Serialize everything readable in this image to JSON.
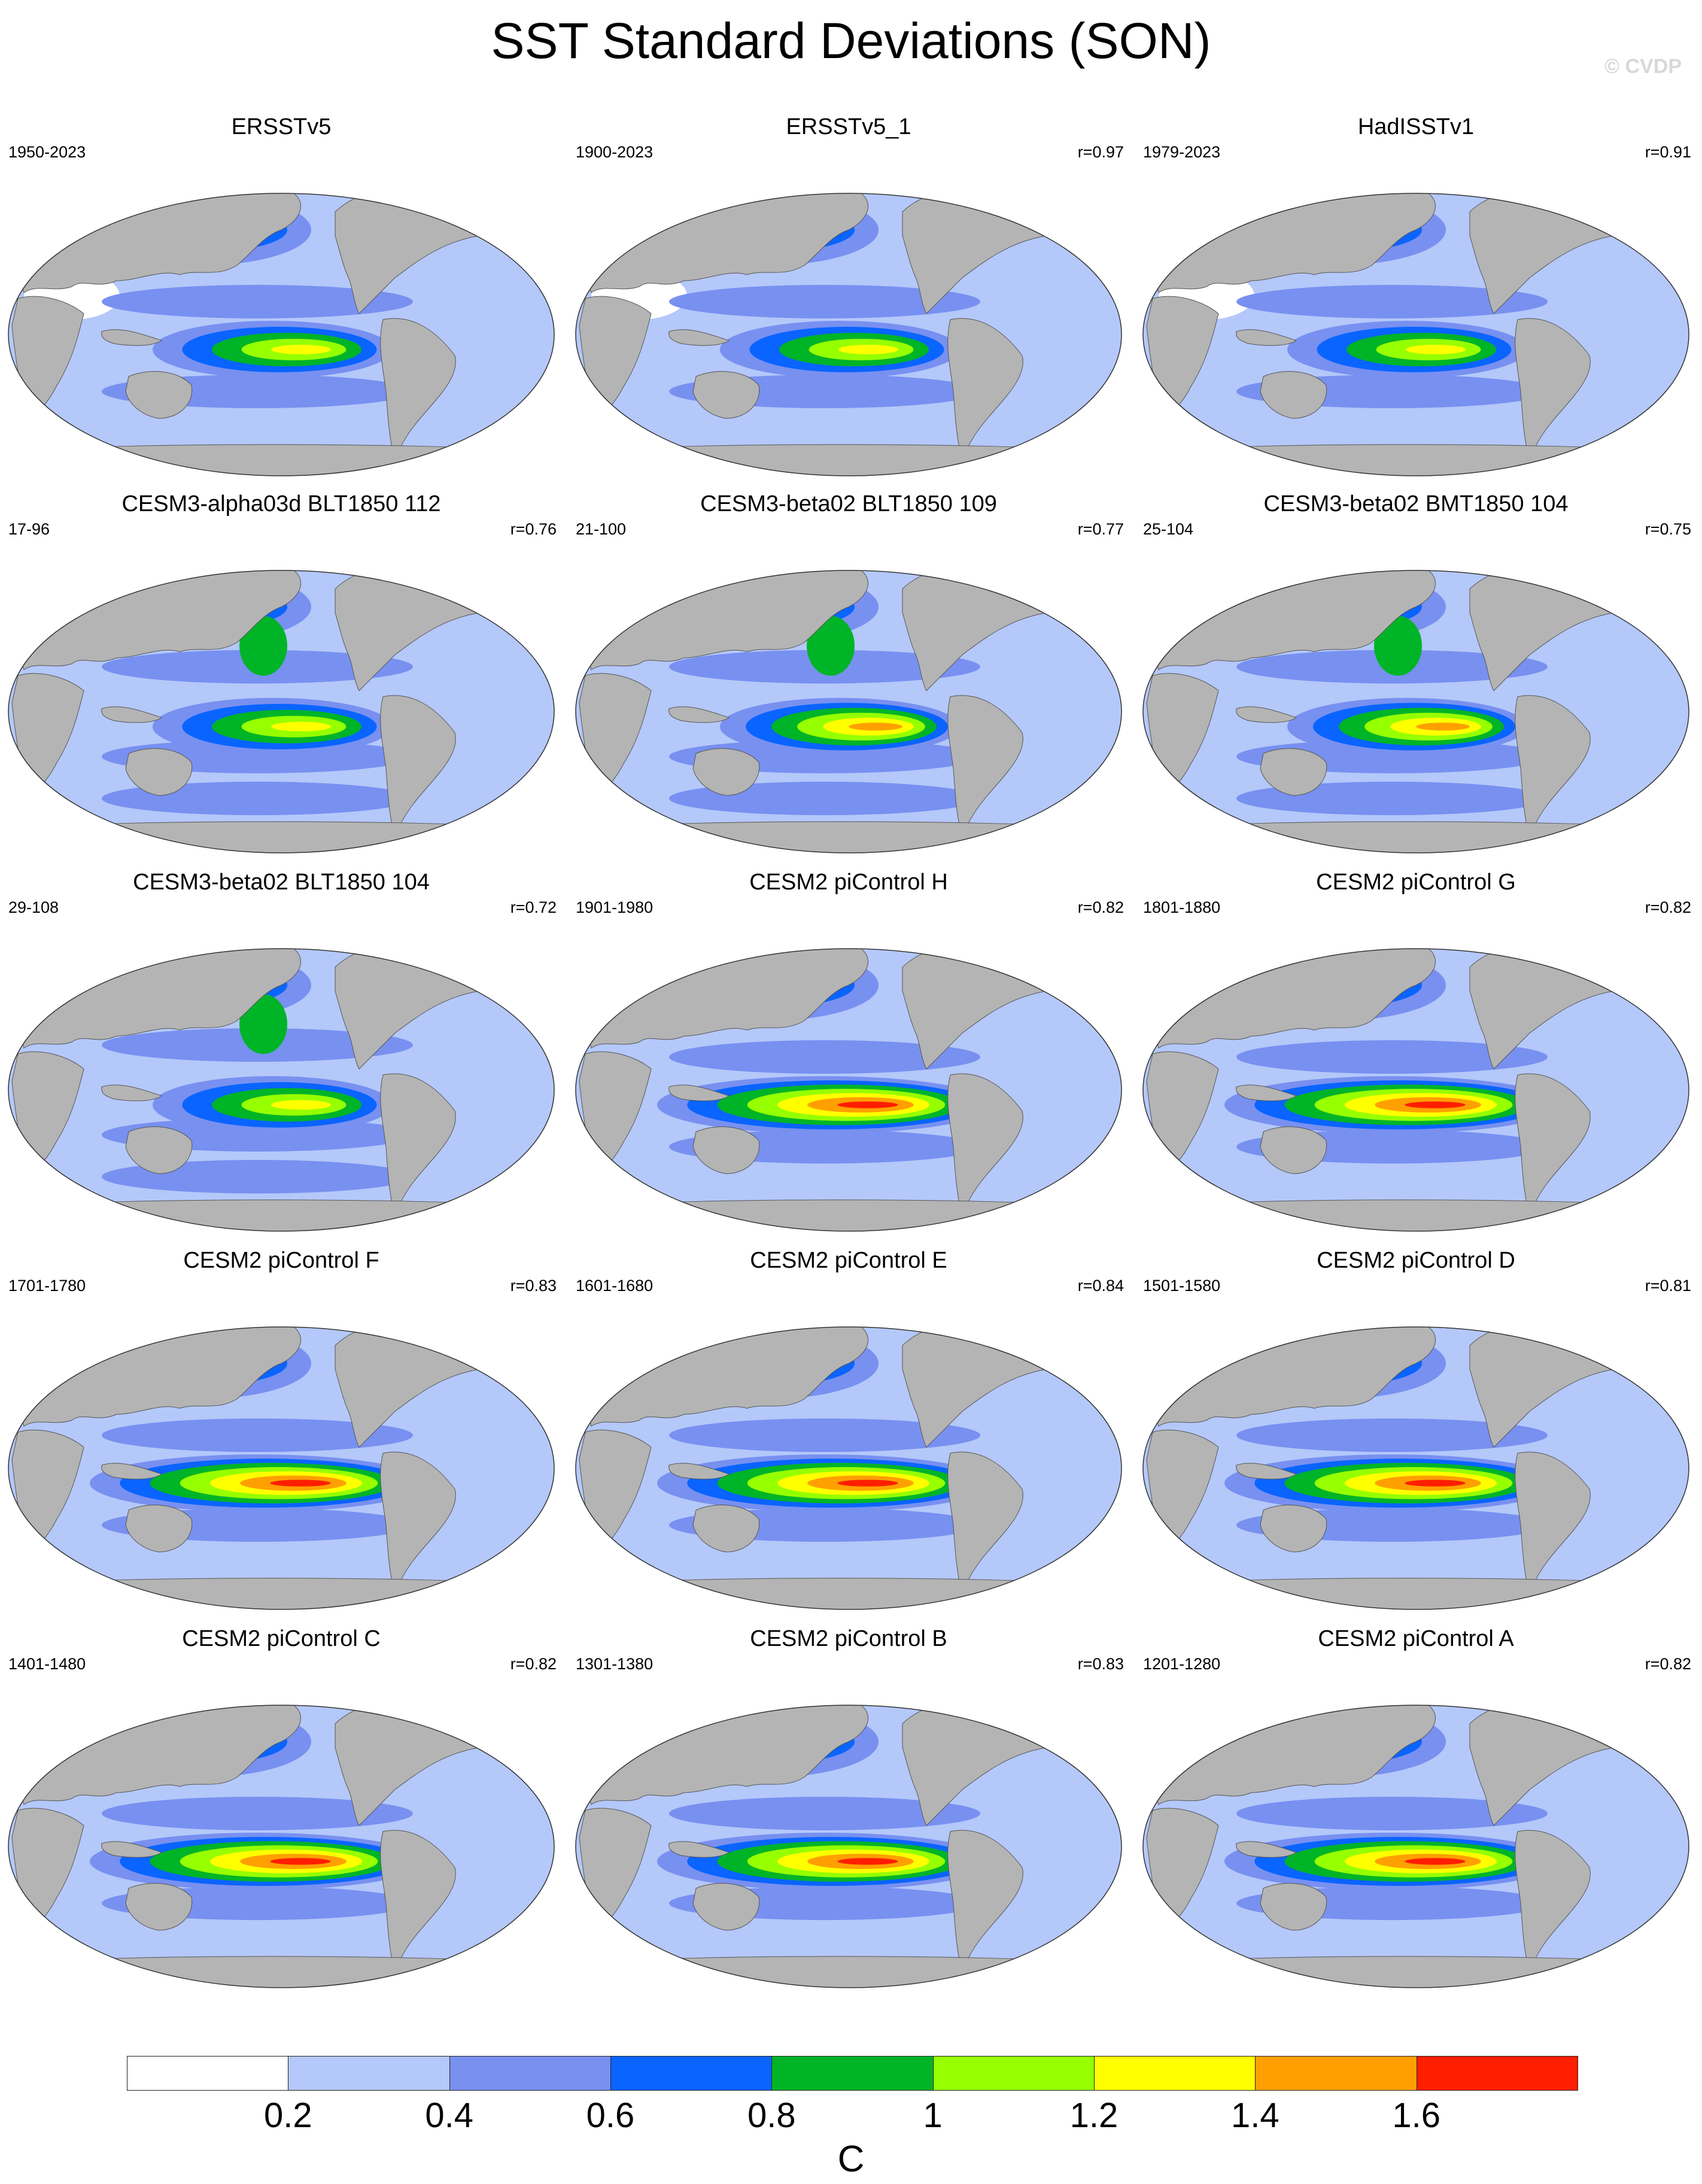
{
  "title": "SST Standard Deviations (SON)",
  "watermark": "© CVDP",
  "colors": {
    "land": "#b4b4b4",
    "levels": [
      "#ffffff",
      "#b4c8fa",
      "#7890f0",
      "#0a64ff",
      "#00b428",
      "#96ff00",
      "#ffff00",
      "#ffa000",
      "#ff1e00"
    ]
  },
  "panels": [
    {
      "title": "ERSSTv5",
      "years": "1950-2023",
      "r": "",
      "style": "obs",
      "enso": 1.2,
      "kuro": 1.0,
      "gulf": 1.0
    },
    {
      "title": "ERSSTv5_1",
      "years": "1900-2023",
      "r": "r=0.97",
      "style": "obs",
      "enso": 1.2,
      "kuro": 1.0,
      "gulf": 1.0
    },
    {
      "title": "HadISSTv1",
      "years": "1979-2023",
      "r": "r=0.91",
      "style": "had",
      "enso": 1.2,
      "kuro": 0.8,
      "gulf": 1.0
    },
    {
      "title": "CESM3-alpha03d BLT1850 112",
      "years": "17-96",
      "r": "r=0.76",
      "style": "cesm3",
      "enso": 1.2,
      "kuro": 1.6,
      "gulf": 1.0
    },
    {
      "title": "CESM3-beta02 BLT1850 109",
      "years": "21-100",
      "r": "r=0.77",
      "style": "cesm3",
      "enso": 1.4,
      "kuro": 1.2,
      "gulf": 1.0
    },
    {
      "title": "CESM3-beta02 BMT1850 104",
      "years": "25-104",
      "r": "r=0.75",
      "style": "cesm3",
      "enso": 1.4,
      "kuro": 1.4,
      "gulf": 1.0
    },
    {
      "title": "CESM3-beta02 BLT1850 104",
      "years": "29-108",
      "r": "r=0.72",
      "style": "cesm3",
      "enso": 1.2,
      "kuro": 1.6,
      "gulf": 1.2
    },
    {
      "title": "CESM2 piControl H",
      "years": "1901-1980",
      "r": "r=0.82",
      "style": "cesm2",
      "enso": 1.6,
      "kuro": 1.0,
      "gulf": 0.8
    },
    {
      "title": "CESM2 piControl G",
      "years": "1801-1880",
      "r": "r=0.82",
      "style": "cesm2",
      "enso": 1.6,
      "kuro": 1.0,
      "gulf": 0.8
    },
    {
      "title": "CESM2 piControl F",
      "years": "1701-1780",
      "r": "r=0.83",
      "style": "cesm2",
      "enso": 1.6,
      "kuro": 1.2,
      "gulf": 1.0
    },
    {
      "title": "CESM2 piControl E",
      "years": "1601-1680",
      "r": "r=0.84",
      "style": "cesm2",
      "enso": 1.6,
      "kuro": 1.0,
      "gulf": 0.8
    },
    {
      "title": "CESM2 piControl D",
      "years": "1501-1580",
      "r": "r=0.81",
      "style": "cesm2",
      "enso": 1.6,
      "kuro": 1.2,
      "gulf": 1.0
    },
    {
      "title": "CESM2 piControl C",
      "years": "1401-1480",
      "r": "r=0.82",
      "style": "cesm2",
      "enso": 1.6,
      "kuro": 1.0,
      "gulf": 1.2
    },
    {
      "title": "CESM2 piControl B",
      "years": "1301-1380",
      "r": "r=0.83",
      "style": "cesm2",
      "enso": 1.6,
      "kuro": 1.0,
      "gulf": 1.0
    },
    {
      "title": "CESM2 piControl A",
      "years": "1201-1280",
      "r": "r=0.82",
      "style": "cesm2",
      "enso": 1.6,
      "kuro": 1.0,
      "gulf": 1.0
    }
  ],
  "colorbar": {
    "ticks": [
      "0.2",
      "0.4",
      "0.6",
      "0.8",
      "1",
      "1.2",
      "1.4",
      "1.6"
    ],
    "unit": "C"
  }
}
